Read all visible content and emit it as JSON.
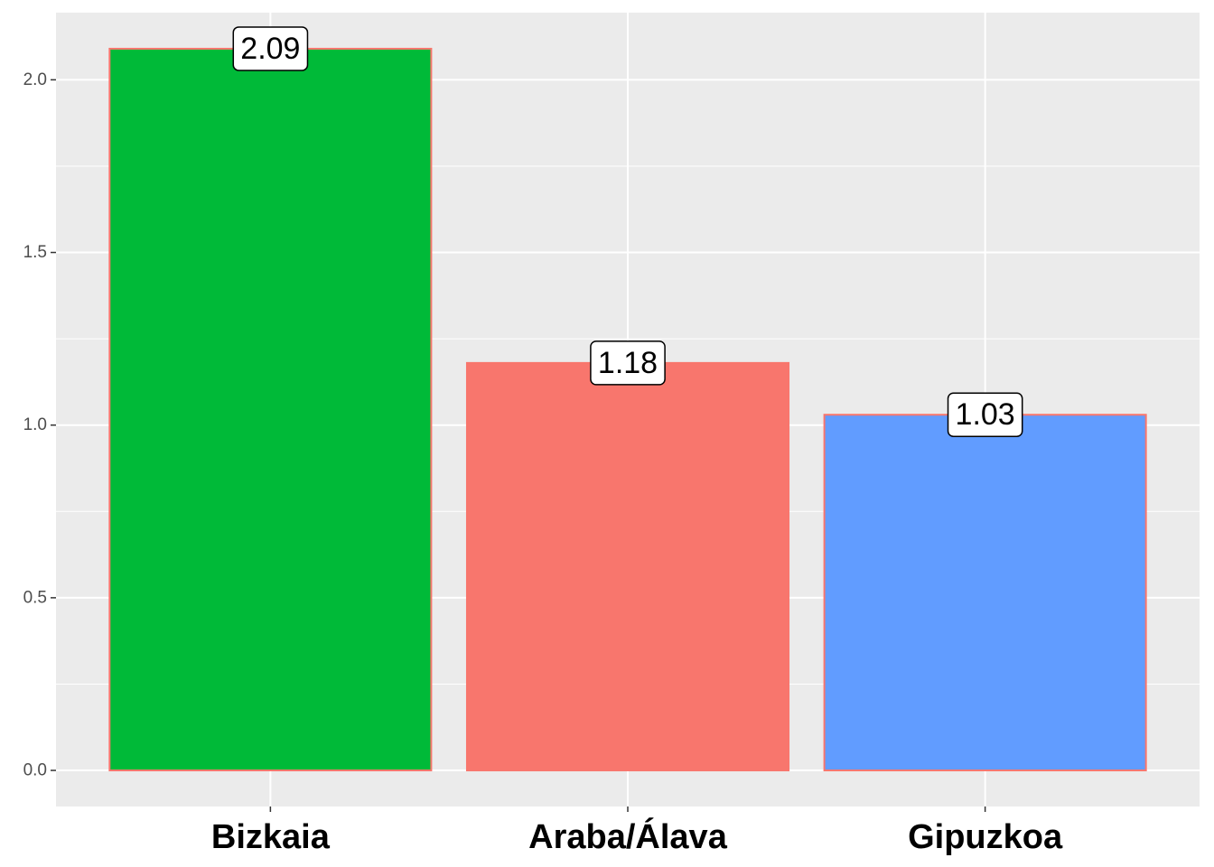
{
  "chart_data": {
    "type": "bar",
    "categories": [
      "Bizkaia",
      "Araba/Álava",
      "Gipuzkoa"
    ],
    "values": [
      2.09,
      1.18,
      1.03
    ],
    "colors": [
      "#00BA38",
      "#F8766D",
      "#619CFF"
    ],
    "outline_color": "#F8766D",
    "ylim": [
      -0.1045,
      2.1945
    ],
    "yticks": [
      {
        "value": 0,
        "label": "0.0"
      },
      0.5,
      {
        "value": 1,
        "label": "1.0"
      },
      1.5,
      {
        "value": 2,
        "label": "2.0"
      }
    ],
    "grid": true
  }
}
